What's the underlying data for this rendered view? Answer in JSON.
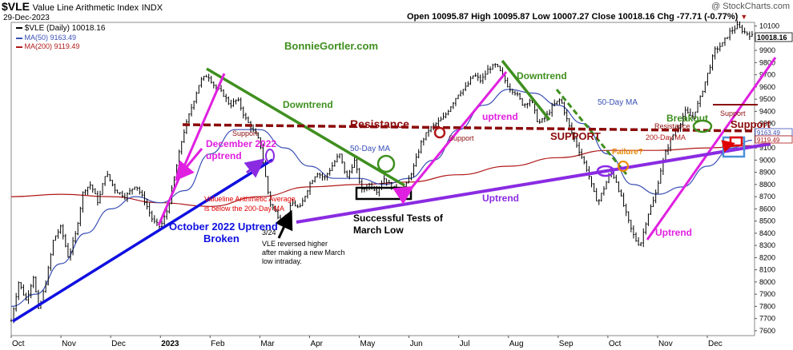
{
  "header": {
    "symbol": "$VLE",
    "name": "Value Line Arithmetic Index",
    "exchange": "INDX",
    "date": "29-Dec-2023",
    "copyright": "@ StockCharts.com",
    "ohlc": "Open 10095.87  High 10095.87  Low 10007.27  Close 10018.16  Chg -77.71 (-0.77%)",
    "chg_marker": "▼"
  },
  "legend": {
    "price": "$VLE (Daily) 10018.16",
    "ma50": "MA(50) 9163.49",
    "ma200": "MA(200) 9119.49"
  },
  "colors": {
    "price": "#000000",
    "ma50": "#3a4fb5",
    "ma200": "#b01818",
    "uptrend_magenta": "#e020e0",
    "downtrend_green": "#3f8f1f",
    "resistance": "#8b0a0a",
    "uptrend_purple": "#8a2be2",
    "october_blue": "#1010e0",
    "red_note": "#e00000",
    "failure": "#e88a00",
    "box_blue": "#4a90d9",
    "box_red": "#e00000"
  },
  "chart_data": {
    "type": "line",
    "title": "",
    "xlabel": "",
    "ylabel": "",
    "x_ticks": [
      "Oct",
      "Nov",
      "Dec",
      "2023",
      "Feb",
      "Mar",
      "Apr",
      "May",
      "Jun",
      "Jul",
      "Aug",
      "Sep",
      "Oct",
      "Nov",
      "Dec"
    ],
    "x_tick_pos": [
      0.0,
      1.0,
      2.0,
      3.0,
      4.0,
      5.0,
      6.0,
      7.0,
      8.0,
      9.0,
      10.0,
      11.0,
      12.0,
      13.0,
      14.0
    ],
    "xlim": [
      0,
      14.95
    ],
    "ylim": [
      7560,
      10130
    ],
    "y_ticks": [
      7600,
      7700,
      7800,
      7900,
      8000,
      8100,
      8200,
      8300,
      8400,
      8500,
      8600,
      8700,
      8800,
      8900,
      9000,
      9100,
      9200,
      9300,
      9400,
      9500,
      9600,
      9700,
      9800,
      9900,
      10000,
      10100
    ],
    "grid": false,
    "legend_position": "top-left",
    "price_pivots": [
      [
        0.0,
        7680
      ],
      [
        0.15,
        8000
      ],
      [
        0.3,
        7850
      ],
      [
        0.45,
        8050
      ],
      [
        0.55,
        7760
      ],
      [
        0.7,
        8000
      ],
      [
        0.85,
        8350
      ],
      [
        1.0,
        8450
      ],
      [
        1.15,
        8200
      ],
      [
        1.3,
        8400
      ],
      [
        1.45,
        8750
      ],
      [
        1.6,
        8800
      ],
      [
        1.75,
        8650
      ],
      [
        1.9,
        8900
      ],
      [
        2.1,
        8750
      ],
      [
        2.3,
        8700
      ],
      [
        2.5,
        8800
      ],
      [
        2.7,
        8650
      ],
      [
        2.85,
        8500
      ],
      [
        3.0,
        8450
      ],
      [
        3.15,
        8600
      ],
      [
        3.3,
        8900
      ],
      [
        3.45,
        9200
      ],
      [
        3.6,
        9400
      ],
      [
        3.8,
        9650
      ],
      [
        3.95,
        9700
      ],
      [
        4.1,
        9600
      ],
      [
        4.25,
        9550
      ],
      [
        4.4,
        9450
      ],
      [
        4.55,
        9500
      ],
      [
        4.7,
        9350
      ],
      [
        4.85,
        9250
      ],
      [
        5.0,
        9150
      ],
      [
        5.1,
        8900
      ],
      [
        5.2,
        8650
      ],
      [
        5.35,
        8550
      ],
      [
        5.5,
        8500
      ],
      [
        5.65,
        8650
      ],
      [
        5.8,
        8600
      ],
      [
        6.0,
        8800
      ],
      [
        6.15,
        8900
      ],
      [
        6.3,
        8850
      ],
      [
        6.45,
        8950
      ],
      [
        6.6,
        9050
      ],
      [
        6.75,
        8850
      ],
      [
        6.9,
        9000
      ],
      [
        7.05,
        8750
      ],
      [
        7.2,
        8800
      ],
      [
        7.35,
        8750
      ],
      [
        7.5,
        8850
      ],
      [
        7.65,
        8780
      ],
      [
        7.8,
        8750
      ],
      [
        7.95,
        8800
      ],
      [
        8.1,
        8950
      ],
      [
        8.25,
        9150
      ],
      [
        8.4,
        9250
      ],
      [
        8.55,
        9300
      ],
      [
        8.7,
        9350
      ],
      [
        8.85,
        9450
      ],
      [
        9.0,
        9550
      ],
      [
        9.15,
        9600
      ],
      [
        9.3,
        9700
      ],
      [
        9.45,
        9650
      ],
      [
        9.6,
        9750
      ],
      [
        9.75,
        9780
      ],
      [
        9.9,
        9680
      ],
      [
        10.0,
        9600
      ],
      [
        10.15,
        9550
      ],
      [
        10.3,
        9450
      ],
      [
        10.45,
        9500
      ],
      [
        10.6,
        9300
      ],
      [
        10.75,
        9350
      ],
      [
        10.9,
        9450
      ],
      [
        11.05,
        9500
      ],
      [
        11.2,
        9300
      ],
      [
        11.35,
        9150
      ],
      [
        11.5,
        9000
      ],
      [
        11.6,
        8900
      ],
      [
        11.7,
        8750
      ],
      [
        11.8,
        8650
      ],
      [
        11.95,
        8800
      ],
      [
        12.05,
        8900
      ],
      [
        12.15,
        8850
      ],
      [
        12.3,
        8650
      ],
      [
        12.45,
        8450
      ],
      [
        12.55,
        8350
      ],
      [
        12.65,
        8300
      ],
      [
        12.8,
        8550
      ],
      [
        12.95,
        8700
      ],
      [
        13.05,
        8900
      ],
      [
        13.15,
        9050
      ],
      [
        13.3,
        9200
      ],
      [
        13.45,
        9300
      ],
      [
        13.55,
        9400
      ],
      [
        13.7,
        9350
      ],
      [
        13.85,
        9500
      ],
      [
        14.0,
        9700
      ],
      [
        14.15,
        9900
      ],
      [
        14.3,
        9950
      ],
      [
        14.45,
        10050
      ],
      [
        14.6,
        10100
      ],
      [
        14.75,
        10050
      ],
      [
        14.9,
        10018
      ]
    ],
    "ma50_points": [
      [
        0.0,
        7800
      ],
      [
        0.5,
        7900
      ],
      [
        1.0,
        8150
      ],
      [
        1.5,
        8400
      ],
      [
        2.0,
        8600
      ],
      [
        2.5,
        8700
      ],
      [
        3.0,
        8650
      ],
      [
        3.5,
        8750
      ],
      [
        4.0,
        9050
      ],
      [
        4.5,
        9250
      ],
      [
        5.0,
        9250
      ],
      [
        5.5,
        9100
      ],
      [
        6.0,
        8950
      ],
      [
        6.5,
        8850
      ],
      [
        7.0,
        8850
      ],
      [
        7.5,
        8800
      ],
      [
        8.0,
        8850
      ],
      [
        8.5,
        9000
      ],
      [
        9.0,
        9250
      ],
      [
        9.5,
        9450
      ],
      [
        10.0,
        9580
      ],
      [
        10.5,
        9550
      ],
      [
        11.0,
        9450
      ],
      [
        11.5,
        9300
      ],
      [
        12.0,
        9050
      ],
      [
        12.5,
        8800
      ],
      [
        13.0,
        8720
      ],
      [
        13.5,
        8780
      ],
      [
        14.0,
        8950
      ],
      [
        14.5,
        9100
      ],
      [
        14.9,
        9163
      ]
    ],
    "ma200_points": [
      [
        0.0,
        8700
      ],
      [
        1.0,
        8720
      ],
      [
        2.0,
        8700
      ],
      [
        3.0,
        8650
      ],
      [
        4.0,
        8620
      ],
      [
        5.0,
        8700
      ],
      [
        6.0,
        8780
      ],
      [
        7.0,
        8800
      ],
      [
        8.0,
        8820
      ],
      [
        9.0,
        8880
      ],
      [
        10.0,
        8950
      ],
      [
        11.0,
        9020
      ],
      [
        12.0,
        9080
      ],
      [
        13.0,
        9080
      ],
      [
        14.0,
        9100
      ],
      [
        14.9,
        9119
      ]
    ],
    "price_right_label": "10018.16",
    "ma50_right_label": "9163.49",
    "ma200_right_label": "9119.49"
  },
  "annotations": {
    "brand": "BonnieGortler.com",
    "downtrend_1": "Downtrend",
    "downtrend_2": "Downtrend",
    "resistance": "Resistance",
    "support_1": "Support",
    "support_2": "Support",
    "support_3": "Support",
    "support_caps": "SUPPORT",
    "support_right": "Support",
    "resistance_small": "Resistance",
    "uptrend_1": "uptrend",
    "uptrend_2": "Uptrend",
    "uptrend_3": "Uptrend",
    "december": "December 2022",
    "december_2": "uptrend",
    "ma50_label_1": "50-Day MA",
    "ma50_label_2": "50-Day MA",
    "ma200_label": "200-Day MA",
    "valueline_note_1": "Valueline Arithmetic Average",
    "valueline_note_2": "is below the 200-Day MA",
    "october_1": "October 2022 Uptrend",
    "october_2": "Broken",
    "successful_1": "Successful Tests of",
    "successful_2": "March Low",
    "date_324": "3/24",
    "vle_note_1": "VLE reversed higher",
    "vle_note_2": "after making a new March",
    "vle_note_3": "low intraday.",
    "failure": "Failure?",
    "breakout": "Breakout"
  }
}
